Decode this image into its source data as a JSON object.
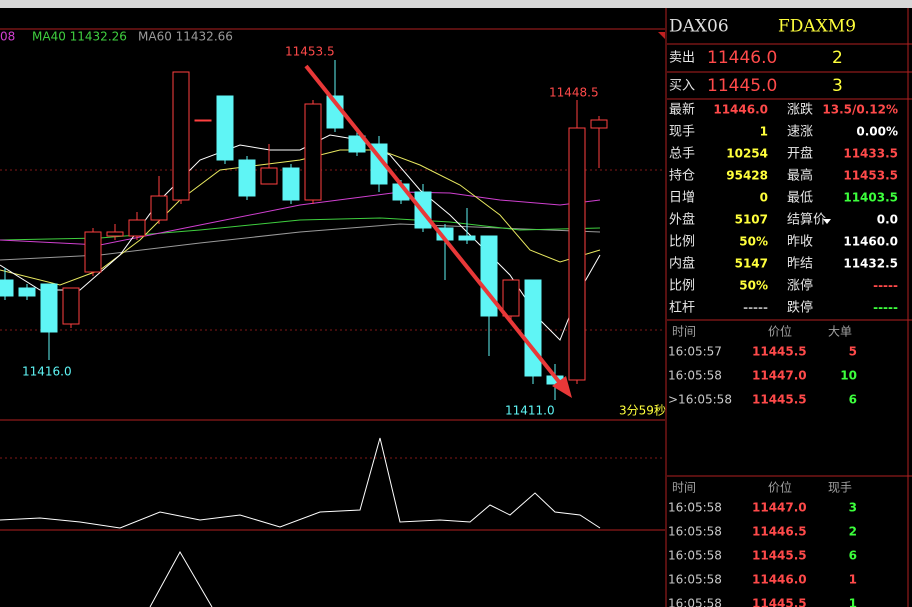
{
  "legend": {
    "ma20": "08",
    "ma40": "MA40 11432.26",
    "ma60": "MA60 11432.66"
  },
  "candles": [
    {
      "open": 11426,
      "close": 11424,
      "high": 11427.5,
      "low": 11423.5
    },
    {
      "open": 11425,
      "close": 11424,
      "high": 11425.5,
      "low": 11423.5
    },
    {
      "open": 11425.5,
      "close": 11419.5,
      "high": 11425.5,
      "low": 11416
    },
    {
      "open": 11420.5,
      "close": 11425,
      "high": 11425,
      "low": 11420
    },
    {
      "open": 11427,
      "close": 11432,
      "high": 11432.5,
      "low": 11426.5
    },
    {
      "open": 11431.5,
      "close": 11432,
      "high": 11433,
      "low": 11431
    },
    {
      "open": 11431.5,
      "close": 11433.5,
      "high": 11434.5,
      "low": 11431
    },
    {
      "open": 11433.5,
      "close": 11436.5,
      "high": 11439,
      "low": 11433
    },
    {
      "open": 11436,
      "close": 11452,
      "high": 11452,
      "low": 11435.5
    },
    {
      "open": 11446,
      "close": 11446,
      "high": 11446,
      "low": 11446
    },
    {
      "open": 11449,
      "close": 11441,
      "high": 11449,
      "low": 11440.5
    },
    {
      "open": 11441,
      "close": 11436.5,
      "high": 11441.5,
      "low": 11436
    },
    {
      "open": 11438,
      "close": 11440,
      "high": 11443,
      "low": 11438
    },
    {
      "open": 11440,
      "close": 11436,
      "high": 11440.5,
      "low": 11435.5
    },
    {
      "open": 11436,
      "close": 11448,
      "high": 11448.5,
      "low": 11435.5
    },
    {
      "open": 11449,
      "close": 11445,
      "high": 11453.5,
      "low": 11444.5
    },
    {
      "open": 11444,
      "close": 11442,
      "high": 11445,
      "low": 11441.5
    },
    {
      "open": 11443,
      "close": 11438,
      "high": 11444,
      "low": 11437
    },
    {
      "open": 11438,
      "close": 11436,
      "high": 11438.5,
      "low": 11435.5
    },
    {
      "open": 11437,
      "close": 11432.5,
      "high": 11438,
      "low": 11432
    },
    {
      "open": 11432.5,
      "close": 11431,
      "high": 11433,
      "low": 11426
    },
    {
      "open": 11431.5,
      "close": 11431,
      "high": 11435,
      "low": 11430.5
    },
    {
      "open": 11431.5,
      "close": 11421.5,
      "high": 11431.5,
      "low": 11416.5
    },
    {
      "open": 11421.5,
      "close": 11426,
      "high": 11426,
      "low": 11421
    },
    {
      "open": 11426,
      "close": 11414,
      "high": 11426,
      "low": 11413
    },
    {
      "open": 11414,
      "close": 11413,
      "high": 11415.5,
      "low": 11411
    },
    {
      "open": 11413.5,
      "close": 11445,
      "high": 11448.5,
      "low": 11413
    },
    {
      "open": 11445,
      "close": 11446,
      "high": 11446.5,
      "low": 11440
    }
  ],
  "annotations": [
    "11453.5",
    "11448.5",
    "11416.0",
    "11411.0",
    "3分59秒"
  ],
  "header": {
    "left": "DAX06",
    "right": "FDAXM9"
  },
  "quotes": [
    [
      "卖出",
      "11446.0",
      "2"
    ],
    [
      "买入",
      "11445.0",
      "3"
    ]
  ],
  "stats": [
    [
      "最新",
      "11446.0",
      "涨跌",
      "13.5/0.12%"
    ],
    [
      "现手",
      "1",
      "速涨",
      "0.00%"
    ],
    [
      "总手",
      "10254",
      "开盘",
      "11433.5"
    ],
    [
      "持仓",
      "95428",
      "最高",
      "11453.5"
    ],
    [
      "日增",
      "0",
      "最低",
      "11403.5"
    ],
    [
      "外盘",
      "5107",
      "结算价",
      "0.0"
    ],
    [
      "比例",
      "50%",
      "昨收",
      "11460.0"
    ],
    [
      "内盘",
      "5147",
      "昨结",
      "11432.5"
    ],
    [
      "比例",
      "50%",
      "涨停",
      "-----"
    ],
    [
      "杠杆",
      "-----",
      "跌停",
      "-----"
    ]
  ],
  "big_orders": {
    "columns": [
      "时间",
      "价位",
      "大单"
    ],
    "rows": [
      [
        "16:05:57",
        "11445.5",
        "5"
      ],
      [
        "16:05:58",
        "11447.0",
        "10"
      ],
      [
        ">16:05:58",
        "11445.5",
        "6"
      ]
    ]
  },
  "trades": {
    "columns": [
      "时间",
      "价位",
      "现手"
    ],
    "rows": [
      [
        "16:05:58",
        "11447.0",
        "3"
      ],
      [
        "16:05:58",
        "11446.5",
        "2"
      ],
      [
        "16:05:58",
        "11445.5",
        "6"
      ],
      [
        "16:05:58",
        "11446.0",
        "1"
      ],
      [
        "16:05:58",
        "11445.5",
        "1"
      ]
    ]
  }
}
